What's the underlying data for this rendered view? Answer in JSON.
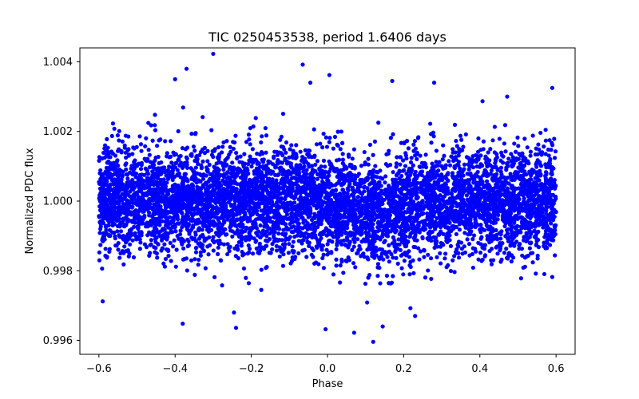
{
  "chart_data": {
    "type": "scatter",
    "title": "TIC 0250453538, period 1.6406 days",
    "xlabel": "Phase",
    "ylabel": "Normalized PDC flux",
    "xlim": [
      -0.65,
      0.65
    ],
    "ylim": [
      0.9956,
      1.0044
    ],
    "xticks": [
      -0.6,
      -0.4,
      -0.2,
      0.0,
      0.2,
      0.4,
      0.6
    ],
    "xtick_labels": [
      "−0.6",
      "−0.4",
      "−0.2",
      "0.0",
      "0.2",
      "0.4",
      "0.6"
    ],
    "yticks": [
      0.996,
      0.998,
      1.0,
      1.002,
      1.004
    ],
    "ytick_labels": [
      "0.996",
      "0.998",
      "1.000",
      "1.002",
      "1.004"
    ],
    "grid": false,
    "marker_color": "#0000ff",
    "series": [
      {
        "name": "Normalized PDC flux",
        "phase_range": [
          -0.6,
          0.6
        ],
        "center": 1.0,
        "scatter_sd": 0.00075,
        "dip_center_phase": 0.12,
        "dip_depth": 0.0004,
        "points": [
          {
            "x": -0.3,
            "y": 1.00423
          },
          {
            "x": -0.065,
            "y": 1.00392
          },
          {
            "x": -0.37,
            "y": 1.0038
          },
          {
            "x": -0.4,
            "y": 1.0035
          },
          {
            "x": 0.005,
            "y": 1.00362
          },
          {
            "x": -0.045,
            "y": 1.0034
          },
          {
            "x": 0.17,
            "y": 1.00345
          },
          {
            "x": 0.28,
            "y": 1.0034
          },
          {
            "x": -0.59,
            "y": 0.99712
          },
          {
            "x": -0.38,
            "y": 0.99648
          },
          {
            "x": -0.24,
            "y": 0.99636
          },
          {
            "x": -0.005,
            "y": 0.99632
          },
          {
            "x": 0.07,
            "y": 0.99622
          },
          {
            "x": 0.12,
            "y": 0.99596
          },
          {
            "x": 0.145,
            "y": 0.9964
          },
          {
            "x": 0.23,
            "y": 0.9967
          },
          {
            "x": 0.59,
            "y": 1.00325
          },
          {
            "x": 0.59,
            "y": 0.99782
          }
        ]
      }
    ]
  }
}
